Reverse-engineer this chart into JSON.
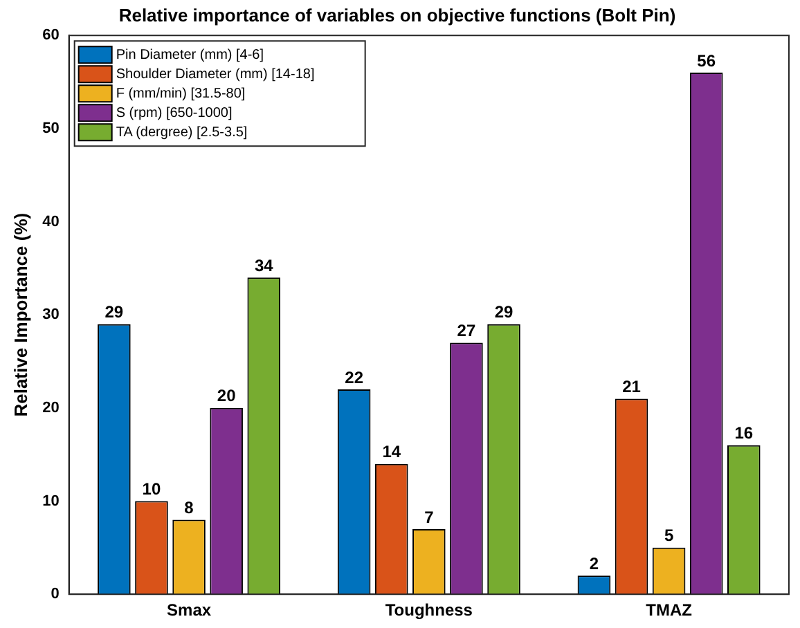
{
  "chart_data": {
    "type": "bar",
    "title": "Relative importance of variables on objective functions (Bolt Pin)",
    "ylabel": "Relative Importance (%)",
    "categories": [
      "Smax",
      "Toughness",
      "TMAZ"
    ],
    "series": [
      {
        "name": "Pin Diameter (mm) [4-6]",
        "color": "#0072bd",
        "values": [
          29,
          22,
          2
        ]
      },
      {
        "name": "Shoulder Diameter (mm) [14-18]",
        "color": "#d95319",
        "values": [
          10,
          14,
          21
        ]
      },
      {
        "name": "F (mm/min) [31.5-80]",
        "color": "#edb120",
        "values": [
          8,
          7,
          5
        ]
      },
      {
        "name": "S (rpm) [650-1000]",
        "color": "#7e2f8e",
        "values": [
          20,
          27,
          56
        ]
      },
      {
        "name": "TA (dergree) [2.5-3.5]",
        "color": "#77ac30",
        "values": [
          34,
          29,
          16
        ]
      }
    ],
    "ylim": [
      0,
      60
    ],
    "yticks": [
      0,
      10,
      20,
      30,
      40,
      50,
      60
    ],
    "grid": false,
    "legend": "top left",
    "data_labels": true
  }
}
